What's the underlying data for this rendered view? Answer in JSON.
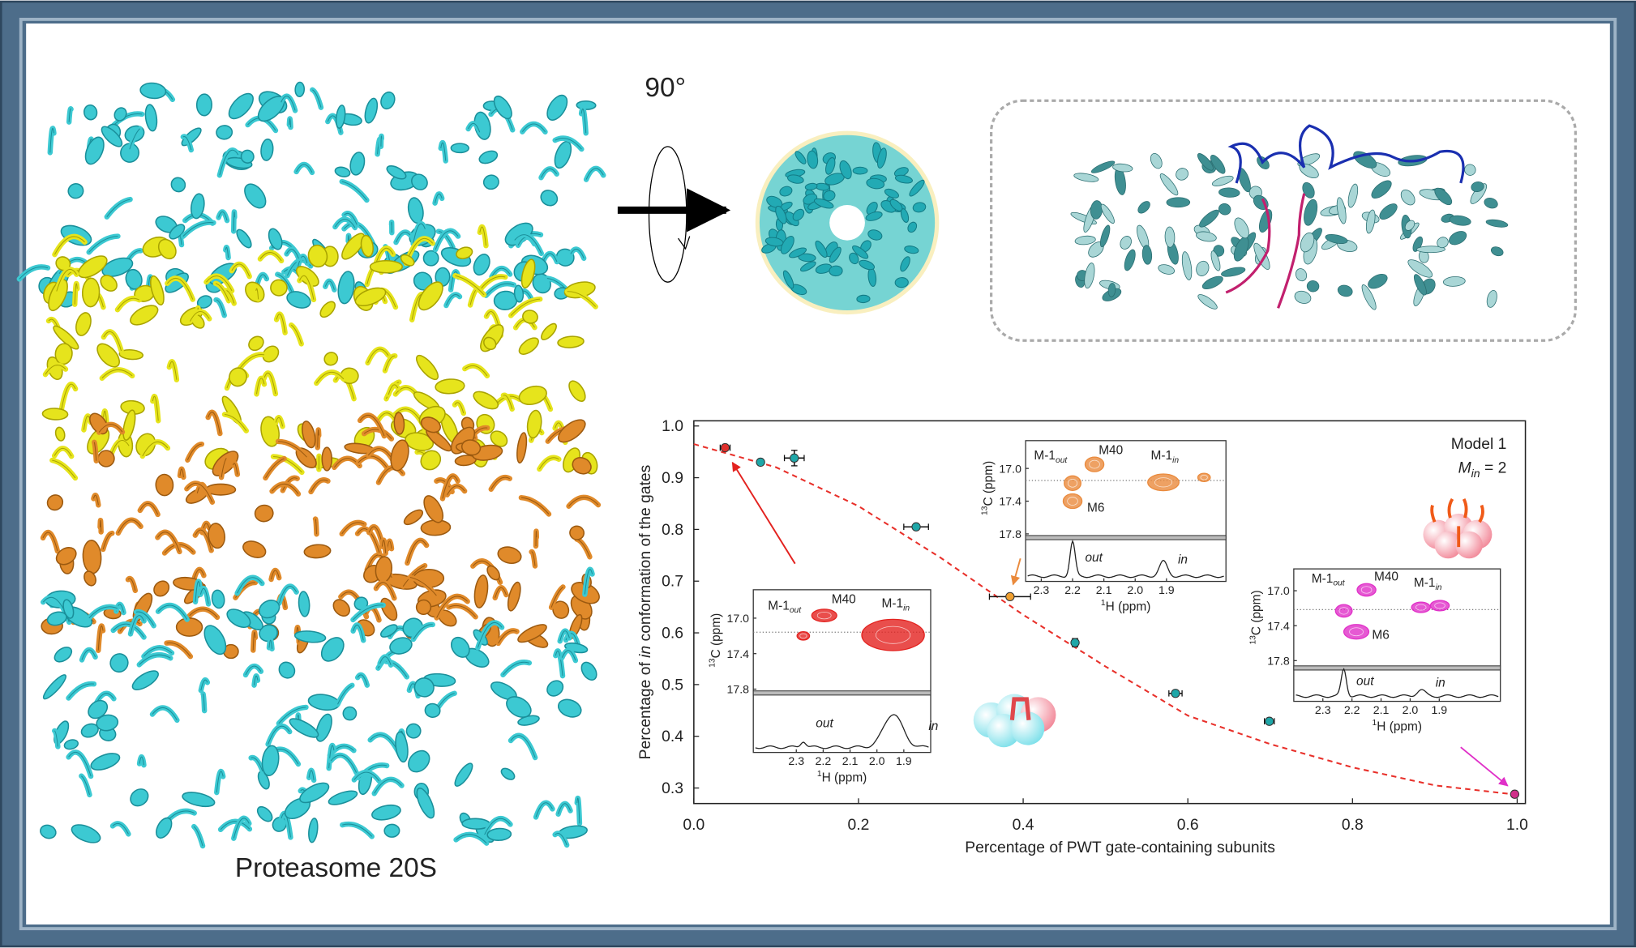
{
  "figure": {
    "rotation_label": "90°",
    "structure_label": "Proteasome 20S"
  },
  "chart_data": {
    "type": "scatter",
    "xlabel": "Percentage of PWT gate-containing subunits",
    "ylabel": [
      "Percentage of ",
      "in",
      " conformation of the gates"
    ],
    "annotation": {
      "title": "Model 1",
      "symbol": "M",
      "sub": "in",
      "rest": " = 2"
    },
    "xlim": [
      0,
      1.01
    ],
    "ylim": [
      0.27,
      1.01
    ],
    "xticks": [
      {
        "value": 0,
        "label": "0.0"
      },
      0.2,
      0.4,
      0.6,
      0.8,
      {
        "value": 1,
        "label": "1.0"
      }
    ],
    "yticks": [
      0.3,
      0.4,
      0.5,
      0.6,
      0.7,
      0.8,
      0.9,
      {
        "value": 1,
        "label": "1.0"
      }
    ],
    "series": [
      {
        "x": [
          0.038,
          0.081,
          0.122,
          0.27,
          0.384,
          0.463,
          0.585,
          0.699,
          0.997
        ],
        "values": [
          0.958,
          0.93,
          0.938,
          0.805,
          0.67,
          0.581,
          0.483,
          0.429,
          0.288
        ],
        "xerr": [
          0.006,
          null,
          0.012,
          0.015,
          0.025,
          null,
          0.008,
          0.006,
          null
        ],
        "yerr": [
          null,
          null,
          0.015,
          null,
          null,
          0.008,
          null,
          null,
          null
        ],
        "colors": [
          "#e0302c",
          "#1fa7a8",
          "#1fa7a8",
          "#1fa7a8",
          "#f0a030",
          "#1fa7a8",
          "#1fa7a8",
          "#1fa7a8",
          "#d0308a"
        ]
      }
    ],
    "fit": {
      "x": [
        0,
        0.1,
        0.2,
        0.3,
        0.4,
        0.5,
        0.6,
        0.7,
        0.8,
        0.9,
        1.0
      ],
      "values": [
        0.965,
        0.92,
        0.845,
        0.745,
        0.635,
        0.535,
        0.44,
        0.385,
        0.34,
        0.305,
        0.287
      ],
      "color": "#e8302a"
    }
  },
  "insets": [
    {
      "color": "#e3221f",
      "xlim": [
        2.46,
        1.8
      ],
      "ylim": [
        16.68,
        17.82
      ],
      "xticks": [
        2.3,
        2.2,
        2.1,
        {
          "value": 2,
          "label": "2.0"
        },
        1.9
      ],
      "yticks": [
        {
          "value": 17,
          "label": "17.0"
        },
        17.4,
        17.8
      ],
      "xlabel": {
        "sup": "1",
        "text": "H (ppm)"
      },
      "ylabel": {
        "sup": "13",
        "text": "C (ppm)"
      },
      "peaks": [
        {
          "label": {
            "text": "M-1",
            "sub": "out"
          },
          "x": 2.274,
          "y": 17.2
        },
        {
          "label": {
            "text": "M40"
          },
          "x": 2.196,
          "y": 16.97
        },
        {
          "label": {
            "text": "M-1",
            "sub": "in"
          },
          "x": 1.94,
          "y": 17.19
        }
      ],
      "spectrum_labels": [
        "out",
        "in"
      ]
    },
    {
      "color": "#ea8a3c",
      "xlim": [
        2.35,
        1.71
      ],
      "ylim": [
        16.66,
        17.82
      ],
      "xticks": [
        2.3,
        2.2,
        2.1,
        {
          "value": 2,
          "label": "2.0"
        },
        1.9
      ],
      "yticks": [
        {
          "value": 17,
          "label": "17.0"
        },
        17.4,
        17.8
      ],
      "xlabel": {
        "sup": "1",
        "text": "H (ppm)"
      },
      "ylabel": {
        "sup": "13",
        "text": "C (ppm)"
      },
      "peaks": [
        {
          "label": {
            "text": "M-1",
            "sub": "out"
          },
          "x": 2.2,
          "y": 17.18
        },
        {
          "label": {
            "text": "M40"
          },
          "x": 2.13,
          "y": 16.95
        },
        {
          "label": {
            "text": "M6"
          },
          "x": 2.2,
          "y": 17.4
        },
        {
          "label": {
            "text": "M-1",
            "sub": "in"
          },
          "x": 1.91,
          "y": 17.17
        },
        {
          "label": null,
          "x": 1.78,
          "y": 17.11
        }
      ],
      "spectrum_labels": [
        "out",
        "in"
      ]
    },
    {
      "color": "#e030c8",
      "xlim": [
        2.4,
        1.69
      ],
      "ylim": [
        16.75,
        17.86
      ],
      "xticks": [
        2.3,
        2.2,
        2.1,
        {
          "value": 2,
          "label": "2.0"
        },
        1.9
      ],
      "yticks": [
        {
          "value": 17,
          "label": "17.0"
        },
        17.4,
        17.8
      ],
      "xlabel": {
        "sup": "1",
        "text": "H (ppm)"
      },
      "ylabel": {
        "sup": "13",
        "text": "C (ppm)"
      },
      "peaks": [
        {
          "label": {
            "text": "M-1",
            "sub": "out"
          },
          "x": 2.228,
          "y": 17.23
        },
        {
          "label": {
            "text": "M40"
          },
          "x": 2.15,
          "y": 16.99
        },
        {
          "label": {
            "text": "M6"
          },
          "x": 2.185,
          "y": 17.47
        },
        {
          "label": {
            "text": "M-1",
            "sub": "in"
          },
          "x": 1.963,
          "y": 17.19
        },
        {
          "label": null,
          "x": 1.898,
          "y": 17.17
        }
      ],
      "spectrum_labels": [
        "out",
        "in"
      ]
    }
  ]
}
